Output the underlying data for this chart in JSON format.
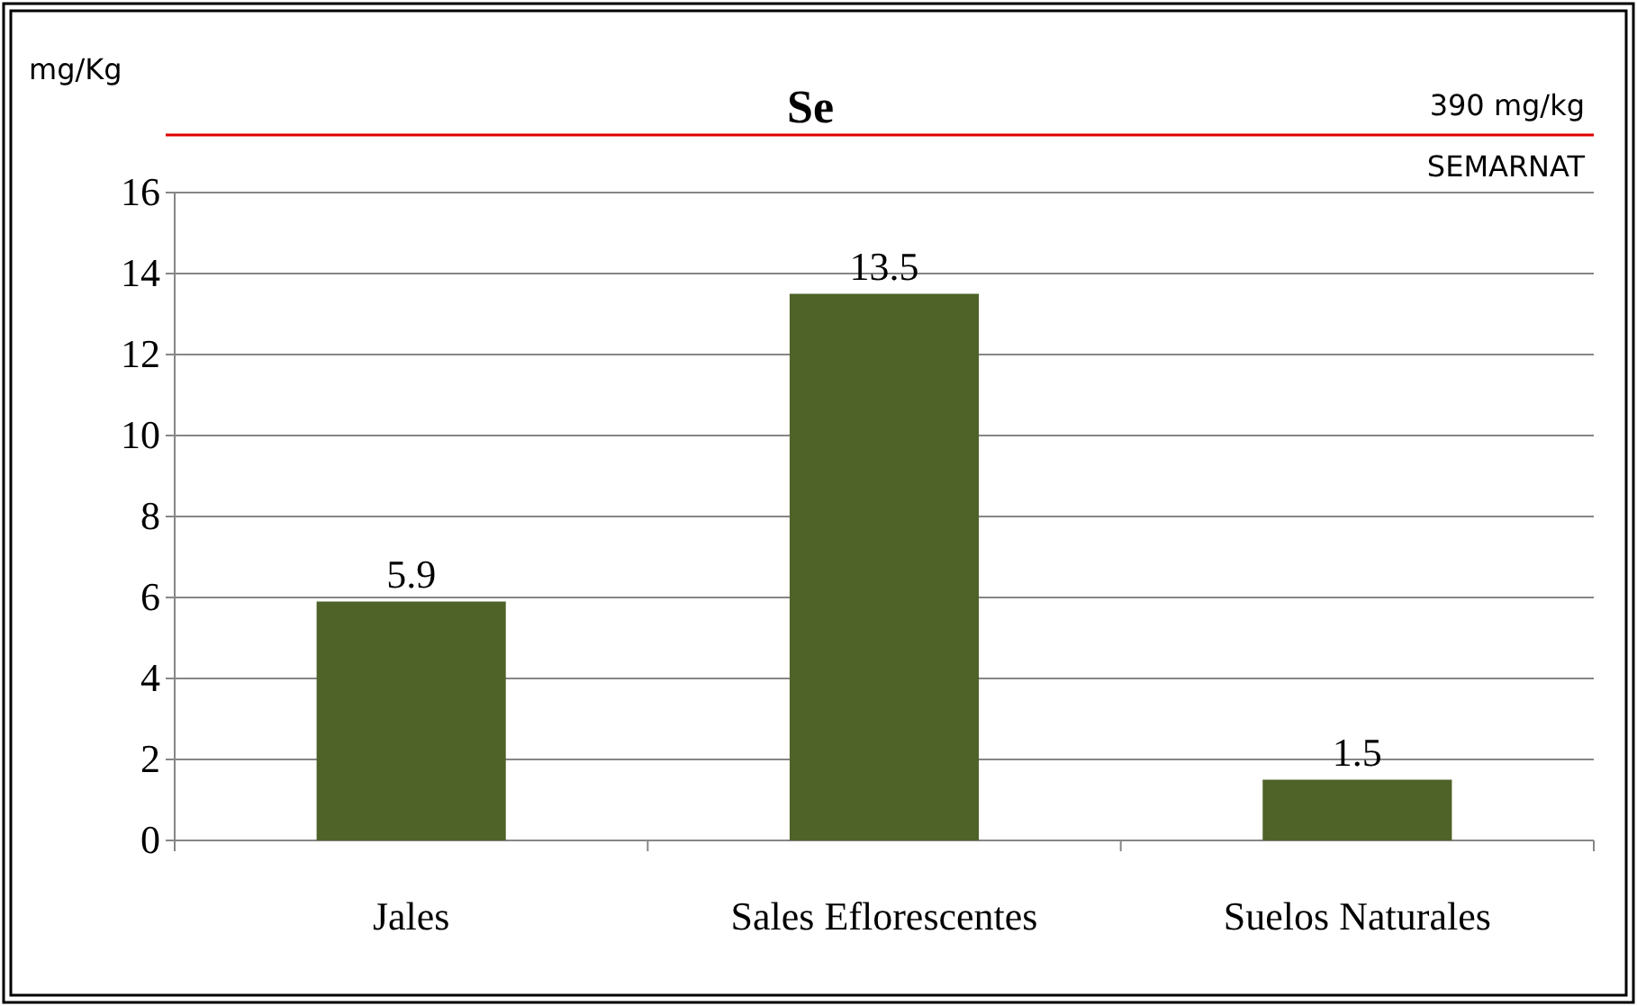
{
  "chart_data": {
    "type": "bar",
    "title": "Se",
    "ylabel": "mg/Kg",
    "categories": [
      "Jales",
      "Sales Eflorescentes",
      "Suelos Naturales"
    ],
    "values": [
      5.9,
      13.5,
      1.5
    ],
    "color": "#4f6228",
    "ylim": [
      0,
      16
    ],
    "yticks": [
      0,
      2,
      4,
      6,
      8,
      10,
      12,
      14,
      16
    ],
    "grid": "y",
    "data_labels": true,
    "annotations": [
      "390 mg/kg",
      "SEMARNAT"
    ]
  }
}
